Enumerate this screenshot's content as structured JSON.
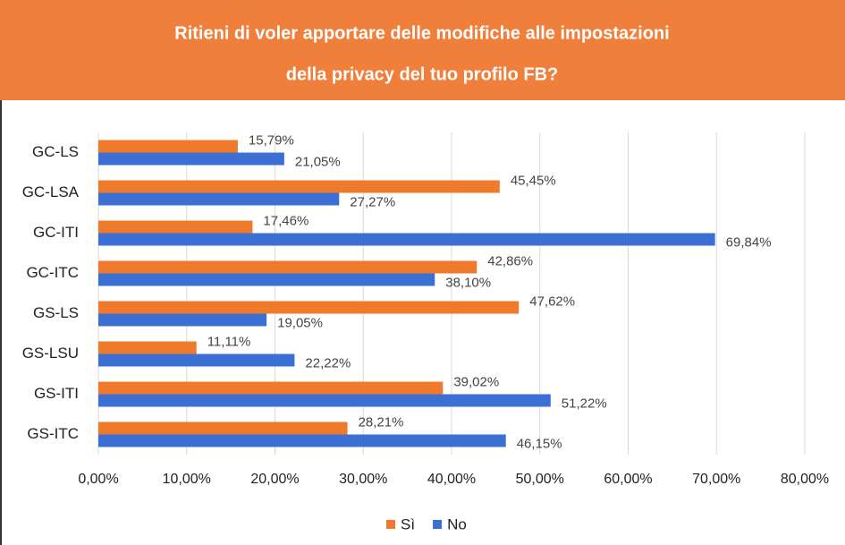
{
  "chart_data": {
    "type": "bar",
    "orientation": "horizontal",
    "title": [
      "Ritieni di voler apportare delle modifiche alle impostazioni",
      "della privacy del tuo profilo FB?"
    ],
    "categories": [
      "GC-LS",
      "GC-LSA",
      "GC-ITI",
      "GC-ITC",
      "GS-LS",
      "GS-LSU",
      "GS-ITI",
      "GS-ITC"
    ],
    "series": [
      {
        "name": "Sì",
        "color": "#f07a2c",
        "values": [
          15.79,
          45.45,
          17.46,
          42.86,
          47.62,
          11.11,
          39.02,
          28.21
        ],
        "value_labels": [
          "15,79%",
          "45,45%",
          "17,46%",
          "42,86%",
          "47,62%",
          "11,11%",
          "39,02%",
          "28,21%"
        ]
      },
      {
        "name": "No",
        "color": "#3b6fd4",
        "values": [
          21.05,
          27.27,
          69.84,
          38.1,
          19.05,
          22.22,
          51.22,
          46.15
        ],
        "value_labels": [
          "21,05%",
          "27,27%",
          "69,84%",
          "38,10%",
          "19,05%",
          "22,22%",
          "51,22%",
          "46,15%"
        ]
      }
    ],
    "xlim": [
      0,
      80
    ],
    "xticks": [
      {
        "value": 0,
        "label": "0,00%"
      },
      {
        "value": 10,
        "label": "10,00%"
      },
      {
        "value": 20,
        "label": "20,00%"
      },
      {
        "value": 30,
        "label": "30,00%"
      },
      {
        "value": 40,
        "label": "40,00%"
      },
      {
        "value": 50,
        "label": "50,00%"
      },
      {
        "value": 60,
        "label": "60,00%"
      },
      {
        "value": 70,
        "label": "70,00%"
      },
      {
        "value": 80,
        "label": "80,00%"
      }
    ],
    "grid": true,
    "legend": "bottom"
  }
}
